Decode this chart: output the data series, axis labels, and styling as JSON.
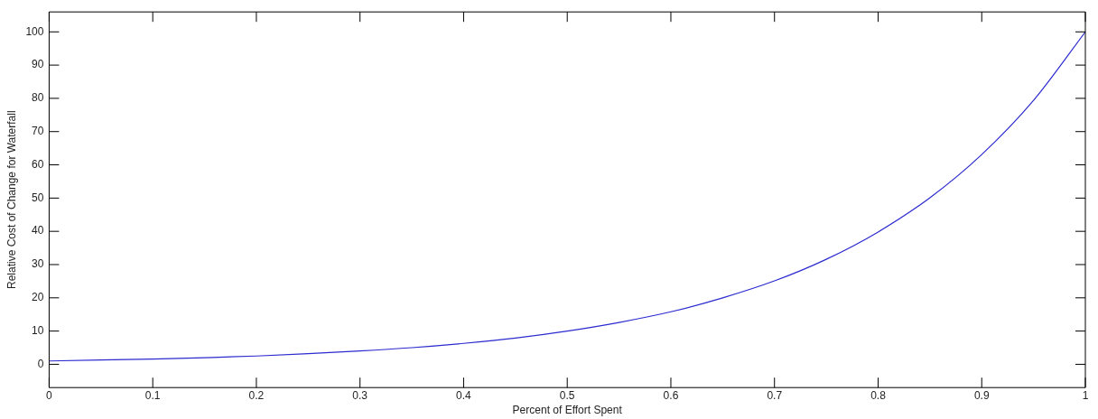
{
  "chart_data": {
    "type": "line",
    "xlabel": "Percent of Effort Spent",
    "ylabel": "Relative Cost of Change for Waterfall",
    "series": [
      {
        "color": "#2b2bd0",
        "x": [
          0,
          0.05,
          0.1,
          0.15,
          0.2,
          0.25,
          0.3,
          0.35,
          0.4,
          0.45,
          0.5,
          0.55,
          0.6,
          0.65,
          0.7,
          0.75,
          0.8,
          0.85,
          0.9,
          0.95,
          1
        ],
        "values": [
          1,
          1.3,
          1.6,
          2,
          2.5,
          3.2,
          4,
          5,
          6.3,
          7.9,
          10,
          12.6,
          15.8,
          20,
          25.1,
          31.6,
          39.8,
          50.1,
          63.1,
          79.4,
          100
        ]
      }
    ],
    "xlim": [
      0,
      1
    ],
    "xticks": [
      0,
      0.1,
      0.2,
      0.3,
      0.4,
      0.5,
      0.6,
      0.7,
      0.8,
      0.9,
      1
    ],
    "ylim": [
      -7,
      106
    ],
    "yticks": [
      0,
      10,
      20,
      30,
      40,
      50,
      60,
      70,
      80,
      90,
      100
    ],
    "grid": false,
    "legend": false,
    "marker": "none",
    "line_style": "solid"
  }
}
